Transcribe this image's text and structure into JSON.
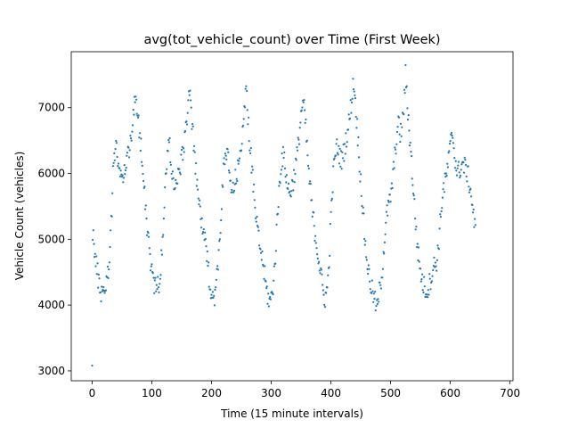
{
  "chart_data": {
    "type": "scatter",
    "title": "avg(tot_vehicle_count) over Time (First Week)",
    "xlabel": "Time (15 minute intervals)",
    "ylabel": "Vehicle Count (vehicles)",
    "xlim": [
      -35,
      705
    ],
    "ylim": [
      2850,
      7850
    ],
    "xticks": [
      0,
      100,
      200,
      300,
      400,
      500,
      600,
      700
    ],
    "yticks": [
      3000,
      4000,
      5000,
      6000,
      7000
    ],
    "grid": false,
    "legend": "none",
    "marker_color": "#1f77b4",
    "day_length": 96,
    "day_anchors": [
      [
        [
          0,
          3080
        ],
        [
          1,
          5150
        ],
        [
          3,
          4950
        ],
        [
          5,
          4700
        ],
        [
          8,
          4550
        ],
        [
          11,
          4350
        ],
        [
          15,
          4200
        ],
        [
          20,
          4250
        ],
        [
          24,
          4350
        ],
        [
          27,
          4500
        ],
        [
          30,
          4900
        ],
        [
          33,
          5500
        ],
        [
          36,
          6200
        ],
        [
          40,
          6500
        ],
        [
          44,
          6100
        ],
        [
          48,
          5900
        ],
        [
          52,
          6000
        ],
        [
          56,
          6100
        ],
        [
          60,
          6300
        ],
        [
          64,
          6500
        ],
        [
          68,
          6800
        ],
        [
          72,
          7100
        ],
        [
          76,
          6900
        ],
        [
          80,
          6600
        ],
        [
          83,
          6300
        ],
        [
          86,
          6000
        ],
        [
          89,
          5600
        ],
        [
          92,
          5200
        ],
        [
          95,
          5000
        ]
      ],
      [
        [
          0,
          4800
        ],
        [
          3,
          4600
        ],
        [
          6,
          4400
        ],
        [
          9,
          4300
        ],
        [
          12,
          4250
        ],
        [
          15,
          4300
        ],
        [
          18,
          4450
        ],
        [
          21,
          4800
        ],
        [
          24,
          5300
        ],
        [
          27,
          5900
        ],
        [
          30,
          6300
        ],
        [
          33,
          6500
        ],
        [
          36,
          6200
        ],
        [
          39,
          5950
        ],
        [
          42,
          5800
        ],
        [
          45,
          5800
        ],
        [
          48,
          5950
        ],
        [
          51,
          6100
        ],
        [
          54,
          6200
        ],
        [
          57,
          6400
        ],
        [
          60,
          6600
        ],
        [
          63,
          6900
        ],
        [
          66,
          7250
        ],
        [
          69,
          7050
        ],
        [
          72,
          6700
        ],
        [
          75,
          6300
        ],
        [
          78,
          6000
        ],
        [
          81,
          5700
        ],
        [
          84,
          5500
        ],
        [
          87,
          5300
        ],
        [
          90,
          5100
        ],
        [
          93,
          4950
        ],
        [
          95,
          4850
        ]
      ],
      [
        [
          0,
          4750
        ],
        [
          3,
          4500
        ],
        [
          6,
          4300
        ],
        [
          9,
          4150
        ],
        [
          12,
          4100
        ],
        [
          15,
          4250
        ],
        [
          18,
          4500
        ],
        [
          21,
          4900
        ],
        [
          24,
          5400
        ],
        [
          27,
          5900
        ],
        [
          30,
          6200
        ],
        [
          33,
          6300
        ],
        [
          36,
          6200
        ],
        [
          39,
          5900
        ],
        [
          42,
          5700
        ],
        [
          45,
          5750
        ],
        [
          48,
          5900
        ],
        [
          51,
          6000
        ],
        [
          54,
          6150
        ],
        [
          57,
          6400
        ],
        [
          60,
          6700
        ],
        [
          63,
          7000
        ],
        [
          66,
          7200
        ],
        [
          69,
          6900
        ],
        [
          72,
          6500
        ],
        [
          75,
          6100
        ],
        [
          78,
          5800
        ],
        [
          81,
          5500
        ],
        [
          84,
          5200
        ],
        [
          87,
          5000
        ],
        [
          90,
          4850
        ],
        [
          93,
          4700
        ],
        [
          95,
          4600
        ]
      ],
      [
        [
          0,
          4500
        ],
        [
          3,
          4300
        ],
        [
          6,
          4150
        ],
        [
          9,
          4050
        ],
        [
          12,
          4100
        ],
        [
          15,
          4300
        ],
        [
          18,
          4600
        ],
        [
          21,
          5100
        ],
        [
          24,
          5600
        ],
        [
          27,
          6000
        ],
        [
          30,
          6250
        ],
        [
          33,
          6250
        ],
        [
          36,
          6050
        ],
        [
          39,
          5850
        ],
        [
          42,
          5700
        ],
        [
          45,
          5750
        ],
        [
          48,
          5850
        ],
        [
          51,
          6000
        ],
        [
          54,
          6200
        ],
        [
          57,
          6400
        ],
        [
          60,
          6700
        ],
        [
          63,
          7000
        ],
        [
          66,
          7050
        ],
        [
          69,
          6800
        ],
        [
          72,
          6400
        ],
        [
          75,
          6000
        ],
        [
          78,
          5700
        ],
        [
          81,
          5400
        ],
        [
          84,
          5200
        ],
        [
          87,
          5000
        ],
        [
          90,
          4800
        ],
        [
          93,
          4600
        ],
        [
          95,
          4500
        ]
      ],
      [
        [
          0,
          4400
        ],
        [
          3,
          4200
        ],
        [
          6,
          4100
        ],
        [
          9,
          4200
        ],
        [
          12,
          4500
        ],
        [
          15,
          5100
        ],
        [
          18,
          5700
        ],
        [
          21,
          6100
        ],
        [
          24,
          6350
        ],
        [
          27,
          6400
        ],
        [
          30,
          6300
        ],
        [
          33,
          6200
        ],
        [
          36,
          6250
        ],
        [
          39,
          6400
        ],
        [
          42,
          6550
        ],
        [
          45,
          6700
        ],
        [
          48,
          6900
        ],
        [
          51,
          7150
        ],
        [
          54,
          7400
        ],
        [
          57,
          7100
        ],
        [
          60,
          6700
        ],
        [
          63,
          6300
        ],
        [
          66,
          5900
        ],
        [
          69,
          5500
        ],
        [
          72,
          5100
        ],
        [
          75,
          4800
        ],
        [
          78,
          4550
        ],
        [
          81,
          4400
        ],
        [
          84,
          4250
        ],
        [
          87,
          4150
        ],
        [
          90,
          4050
        ],
        [
          93,
          3950
        ],
        [
          95,
          4000
        ]
      ],
      [
        [
          0,
          4150
        ],
        [
          3,
          4300
        ],
        [
          6,
          4550
        ],
        [
          9,
          4900
        ],
        [
          12,
          5250
        ],
        [
          15,
          5450
        ],
        [
          18,
          5550
        ],
        [
          21,
          5700
        ],
        [
          24,
          5950
        ],
        [
          27,
          6250
        ],
        [
          30,
          6550
        ],
        [
          33,
          6750
        ],
        [
          36,
          6600
        ],
        [
          39,
          6700
        ],
        [
          42,
          7000
        ],
        [
          45,
          7500
        ],
        [
          48,
          7050
        ],
        [
          51,
          6700
        ],
        [
          54,
          6300
        ],
        [
          57,
          5900
        ],
        [
          60,
          5500
        ],
        [
          63,
          5100
        ],
        [
          66,
          4800
        ],
        [
          69,
          4600
        ],
        [
          72,
          4400
        ],
        [
          75,
          4300
        ],
        [
          78,
          4250
        ],
        [
          81,
          4200
        ],
        [
          84,
          4300
        ],
        [
          87,
          4400
        ],
        [
          90,
          4500
        ],
        [
          93,
          4600
        ],
        [
          95,
          4650
        ]
      ],
      [
        [
          0,
          4600
        ],
        [
          3,
          4800
        ],
        [
          6,
          5100
        ],
        [
          9,
          5500
        ],
        [
          12,
          5750
        ],
        [
          15,
          5850
        ],
        [
          18,
          6000
        ],
        [
          21,
          6200
        ],
        [
          24,
          6400
        ],
        [
          27,
          6650
        ],
        [
          30,
          6400
        ],
        [
          33,
          6150
        ],
        [
          36,
          6000
        ],
        [
          39,
          6050
        ],
        [
          42,
          6100
        ],
        [
          45,
          6150
        ],
        [
          48,
          6100
        ],
        [
          51,
          6050
        ],
        [
          54,
          5950
        ],
        [
          57,
          5800
        ],
        [
          60,
          5600
        ],
        [
          63,
          5350
        ],
        [
          66,
          5100
        ]
      ]
    ]
  }
}
